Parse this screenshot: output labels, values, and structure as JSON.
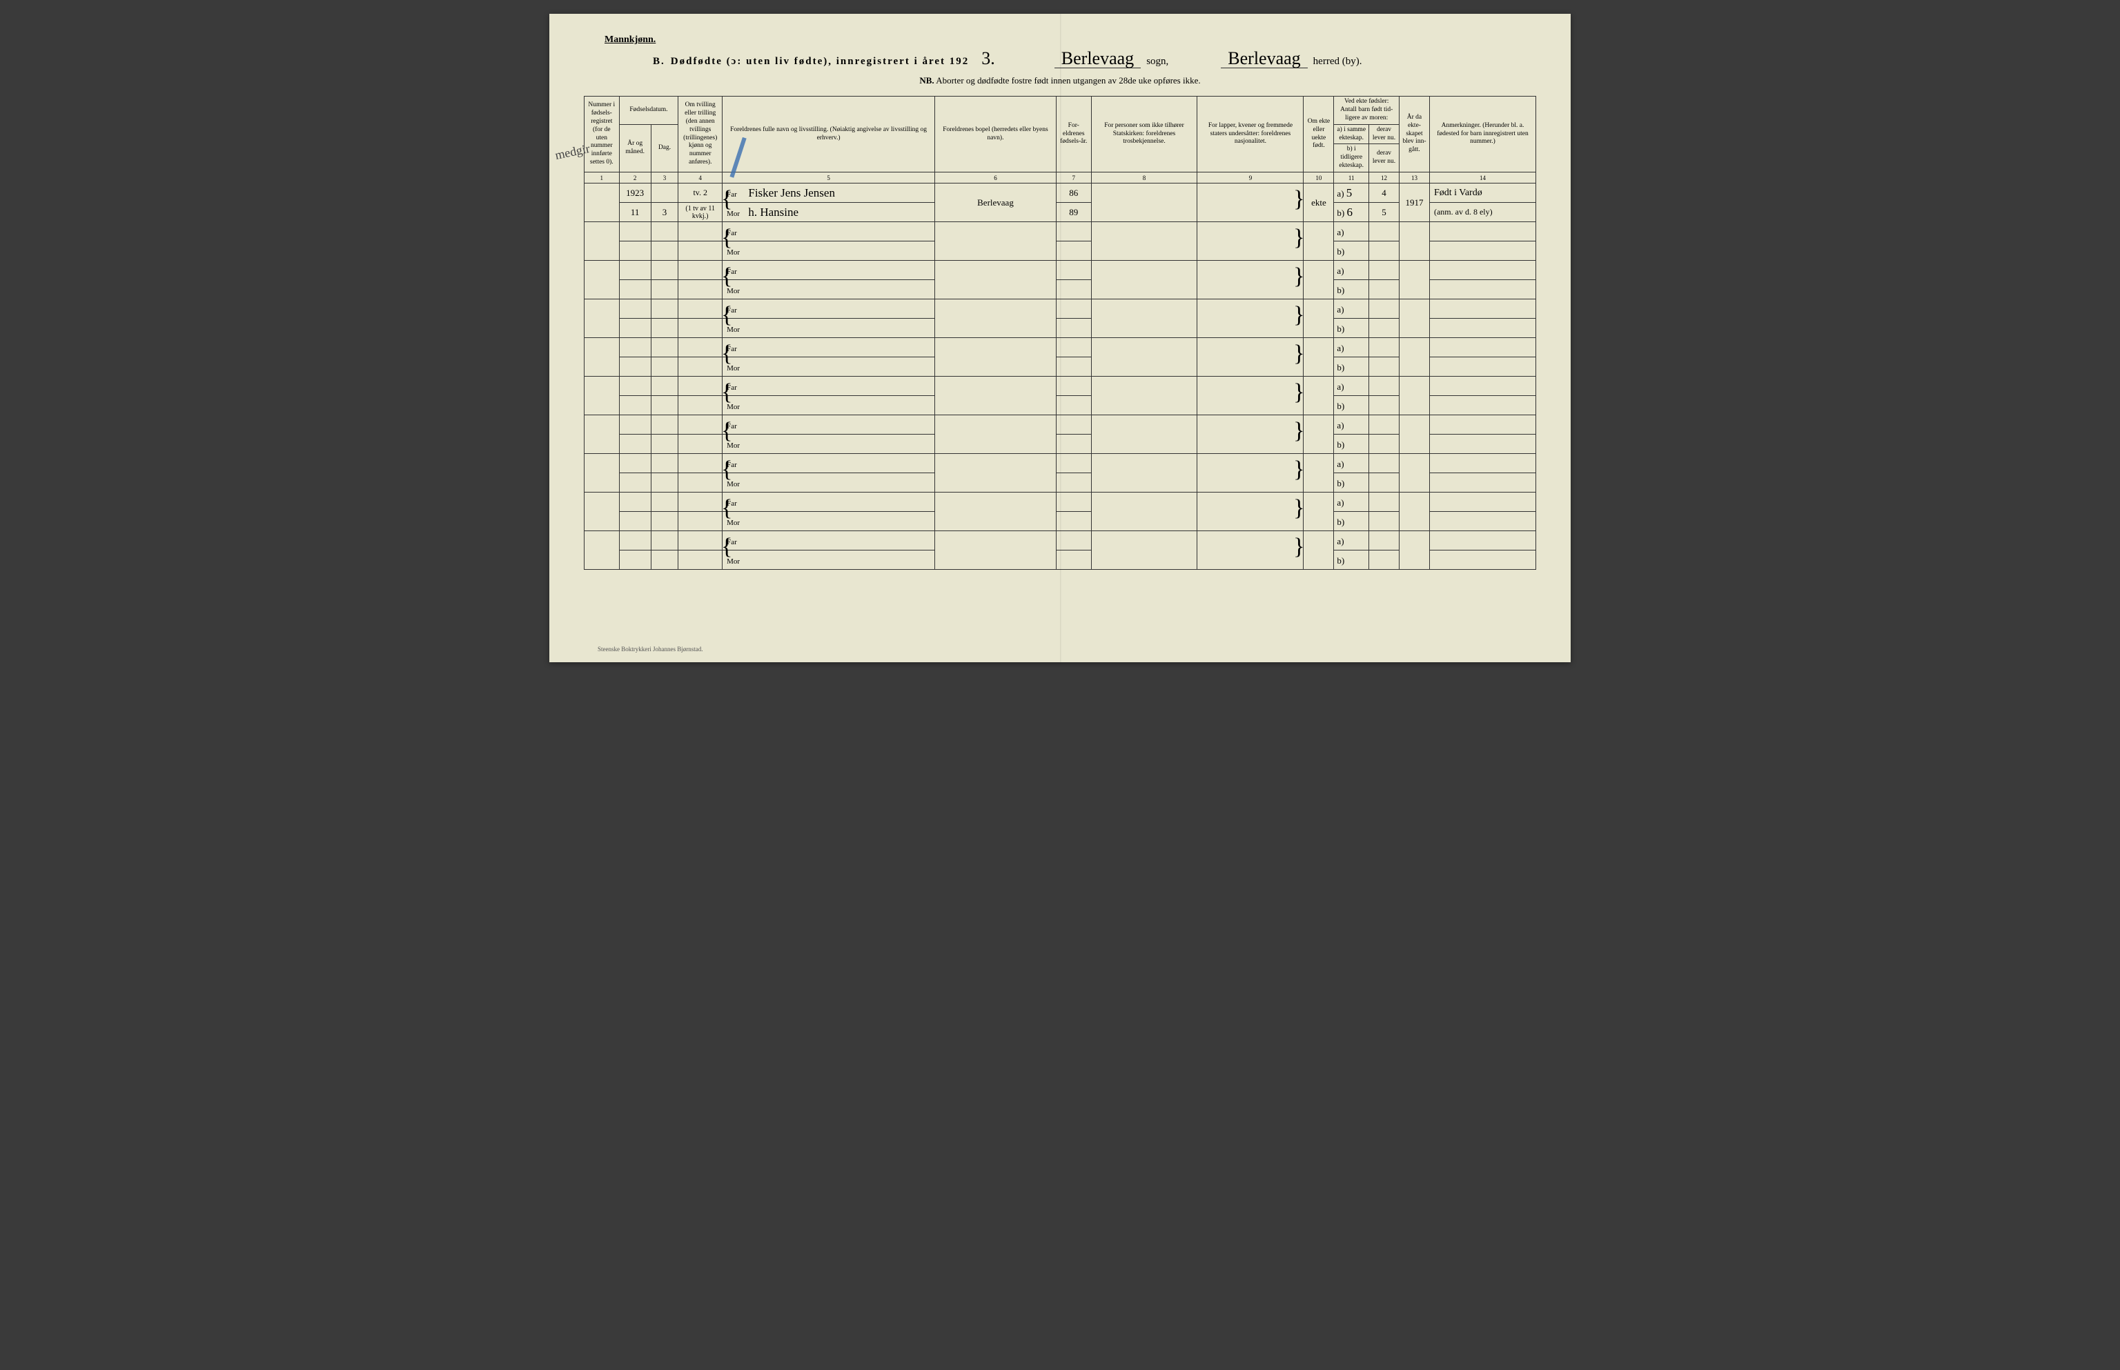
{
  "header": {
    "gender": "Mannkjønn.",
    "section_letter": "B.",
    "title_main": "Dødfødte (ɔ: uten liv fødte), innregistrert i året 192",
    "year_suffix": "3.",
    "sogn_label": "sogn,",
    "sogn_value": "Berlevaag",
    "herred_label": "herred (by).",
    "herred_value": "Berlevaag",
    "subtitle_nb": "NB.",
    "subtitle_text": "Aborter og dødfødte fostre født innen utgangen av 28de uke opføres ikke."
  },
  "columns": {
    "c1": "Nummer i fødsels-registret (for de uten nummer innførte settes 0).",
    "c2_top": "Fødselsdatum.",
    "c2a": "År og måned.",
    "c2b": "Dag.",
    "c4": "Om tvilling eller trilling (den annen tvillings (trillingenes) kjønn og nummer anføres).",
    "c5": "Foreldrenes fulle navn og livsstilling. (Nøiaktig angivelse av livsstilling og erhverv.)",
    "c6": "Foreldrenes bopel (herredets eller byens navn).",
    "c7": "For-eldrenes fødsels-år.",
    "c8": "For personer som ikke tilhører Statskirken: foreldrenes trosbekjennelse.",
    "c9": "For lapper, kvener og fremmede staters undersåtter: foreldrenes nasjonalitet.",
    "c10": "Om ekte eller uekte født.",
    "c11_top": "Ved ekte fødsler: Antall barn født tid-ligere av moren:",
    "c11a": "a) i samme ekteskap.",
    "c11b": "b) i tidligere ekteskap.",
    "c12a": "derav lever nu.",
    "c12b": "derav lever nu.",
    "c13": "År da ekte-skapet blev inn-gått.",
    "c14": "Anmerkninger. (Herunder bl. a. fødested for barn innregistrert uten nummer.)"
  },
  "colnums": [
    "1",
    "2",
    "3",
    "4",
    "5",
    "6",
    "7",
    "8",
    "9",
    "10",
    "11",
    "12",
    "13",
    "14"
  ],
  "row_labels": {
    "far": "Far",
    "mor": "Mor",
    "a": "a)",
    "b": "b)"
  },
  "entries": [
    {
      "col1": "",
      "year": "1923",
      "day_far": "",
      "day_mor": "3",
      "month_mor": "11",
      "col4_far": "tv. 2",
      "col4_mor": "(1 tv av 11 kvkj.)",
      "far_name": "Fisker Jens Jensen",
      "mor_name": "h. Hansine",
      "bopel": "Berlevaag",
      "far_year": "86",
      "mor_year": "89",
      "col10": "ekte",
      "c11a": "5",
      "c11b": "6",
      "c12a": "4",
      "c12b": "5",
      "c13": "1917",
      "c14_far": "Født i Vardø",
      "c14_mor": "(anm. av d. 8 ely)"
    }
  ],
  "margin_note": "medgir",
  "footer": "Steenske Boktrykkeri Johannes Bjørnstad.",
  "colors": {
    "paper": "#e8e6d0",
    "ink": "#2b2b2b",
    "blue_pencil": "#3a6fb0"
  },
  "empty_rows": 9
}
